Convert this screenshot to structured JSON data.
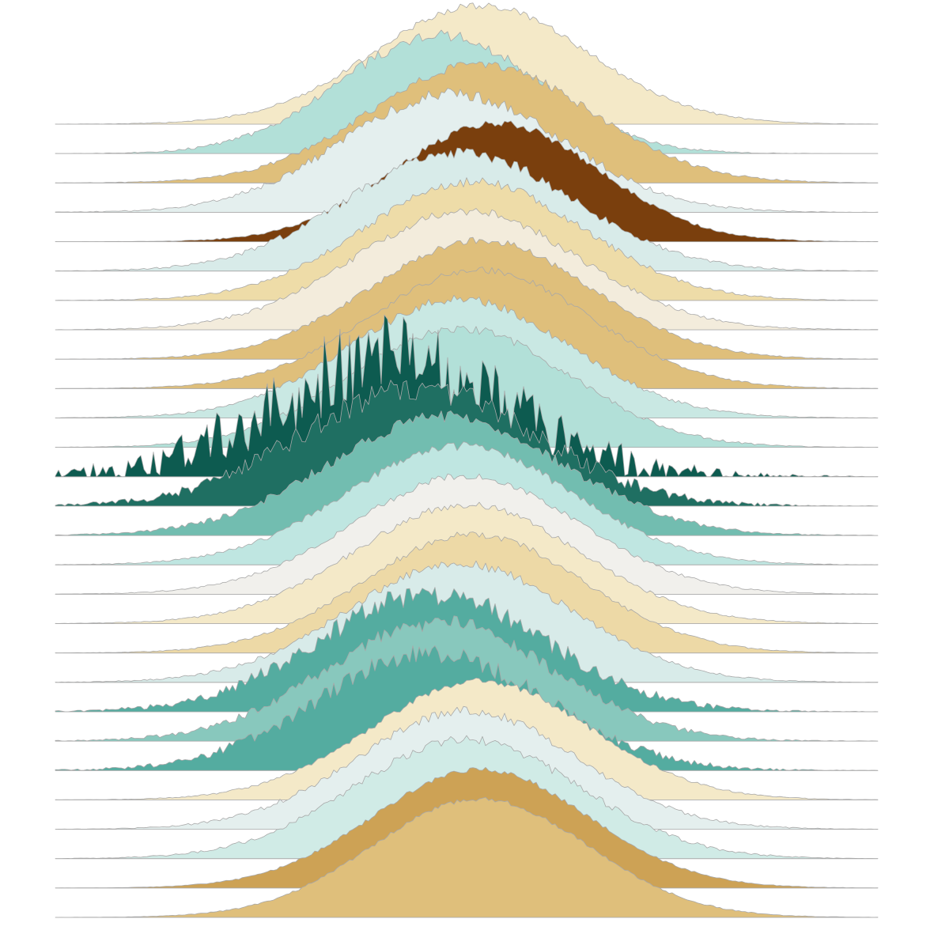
{
  "chart_data": {
    "type": "area",
    "title": "",
    "xlabel": "",
    "ylabel": "",
    "grid": false,
    "legend": "none",
    "series": [
      {
        "center": 0.1,
        "spread": 0.78,
        "noise": 0.03,
        "color": "#f4e9c8"
      },
      {
        "center": -0.2,
        "spread": 0.72,
        "noise": 0.05,
        "color": "#b2e0d8"
      },
      {
        "center": 0.1,
        "spread": 0.8,
        "noise": 0.04,
        "color": "#dfbf7b"
      },
      {
        "center": -0.1,
        "spread": 0.8,
        "noise": 0.05,
        "color": "#e4efee"
      },
      {
        "center": 0.22,
        "spread": 0.74,
        "noise": 0.03,
        "color": "#7a3f0d"
      },
      {
        "center": -0.05,
        "spread": 0.82,
        "noise": 0.05,
        "color": "#d8ebe9"
      },
      {
        "center": 0.05,
        "spread": 0.8,
        "noise": 0.04,
        "color": "#eedca8"
      },
      {
        "center": 0.0,
        "spread": 0.82,
        "noise": 0.04,
        "color": "#f3ecdc"
      },
      {
        "center": 0.1,
        "spread": 0.8,
        "noise": 0.03,
        "color": "#dfbf7b"
      },
      {
        "center": 0.1,
        "spread": 0.8,
        "noise": 0.03,
        "color": "#dfbf7b"
      },
      {
        "center": -0.05,
        "spread": 0.8,
        "noise": 0.04,
        "color": "#c9e8e3"
      },
      {
        "center": -0.05,
        "spread": 0.8,
        "noise": 0.04,
        "color": "#b2e0d8"
      },
      {
        "center": -0.55,
        "spread": 0.85,
        "noise": 0.38,
        "color": "#0d5b50"
      },
      {
        "center": -0.35,
        "spread": 0.85,
        "noise": 0.12,
        "color": "#1f6f62"
      },
      {
        "center": -0.15,
        "spread": 0.85,
        "noise": 0.06,
        "color": "#72bdb0"
      },
      {
        "center": -0.05,
        "spread": 0.82,
        "noise": 0.04,
        "color": "#bfe6e1"
      },
      {
        "center": 0.0,
        "spread": 0.82,
        "noise": 0.03,
        "color": "#f1f0ec"
      },
      {
        "center": 0.0,
        "spread": 0.82,
        "noise": 0.03,
        "color": "#f4e9c8"
      },
      {
        "center": 0.05,
        "spread": 0.8,
        "noise": 0.03,
        "color": "#edd9a6"
      },
      {
        "center": -0.05,
        "spread": 0.82,
        "noise": 0.04,
        "color": "#d8ebe9"
      },
      {
        "center": -0.25,
        "spread": 0.82,
        "noise": 0.1,
        "color": "#54aca0"
      },
      {
        "center": -0.2,
        "spread": 0.82,
        "noise": 0.07,
        "color": "#88c8bd"
      },
      {
        "center": -0.25,
        "spread": 0.82,
        "noise": 0.09,
        "color": "#54aca0"
      },
      {
        "center": 0.1,
        "spread": 0.8,
        "noise": 0.03,
        "color": "#f4e9c8"
      },
      {
        "center": 0.0,
        "spread": 0.8,
        "noise": 0.04,
        "color": "#e4efee"
      },
      {
        "center": 0.0,
        "spread": 0.82,
        "noise": 0.04,
        "color": "#d0ebe6"
      },
      {
        "center": 0.1,
        "spread": 0.78,
        "noise": 0.02,
        "color": "#cda255"
      },
      {
        "center": 0.1,
        "spread": 0.78,
        "noise": 0.02,
        "color": "#dfbf7b"
      }
    ]
  }
}
